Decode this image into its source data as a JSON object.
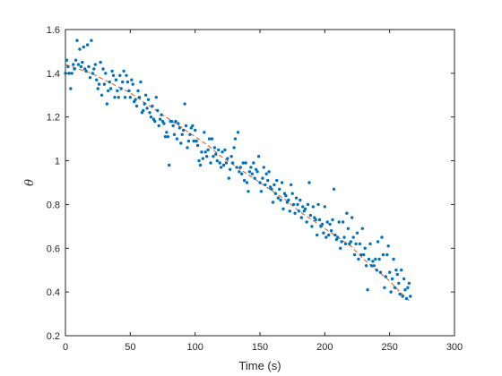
{
  "chart_data": {
    "type": "scatter",
    "xlabel": "Time (s)",
    "ylabel": "θ",
    "xlim": [
      0,
      300
    ],
    "ylim": [
      0.2,
      1.6
    ],
    "xticks": [
      "0",
      "50",
      "100",
      "150",
      "200",
      "250",
      "300"
    ],
    "yticks": [
      "0.2",
      "0.4",
      "0.6",
      "0.8",
      "1",
      "1.2",
      "1.4",
      "1.6"
    ],
    "grid": false,
    "box": true,
    "series": [
      {
        "kind": "scatter",
        "color": "#0072BD",
        "points": [
          [
            0,
            1.4
          ],
          [
            1,
            1.46
          ],
          [
            2,
            1.43
          ],
          [
            3,
            1.4
          ],
          [
            4,
            1.33
          ],
          [
            5,
            1.4
          ],
          [
            6,
            1.44
          ],
          [
            7,
            1.42
          ],
          [
            8,
            1.46
          ],
          [
            9,
            1.55
          ],
          [
            10,
            1.44
          ],
          [
            11,
            1.51
          ],
          [
            12,
            1.43
          ],
          [
            13,
            1.45
          ],
          [
            14,
            1.52
          ],
          [
            15,
            1.42
          ],
          [
            16,
            1.41
          ],
          [
            17,
            1.53
          ],
          [
            18,
            1.43
          ],
          [
            19,
            1.38
          ],
          [
            20,
            1.55
          ],
          [
            21,
            1.4
          ],
          [
            22,
            1.42
          ],
          [
            23,
            1.44
          ],
          [
            24,
            1.37
          ],
          [
            25,
            1.33
          ],
          [
            26,
            1.35
          ],
          [
            27,
            1.45
          ],
          [
            28,
            1.3
          ],
          [
            29,
            1.42
          ],
          [
            30,
            1.35
          ],
          [
            31,
            1.4
          ],
          [
            32,
            1.26
          ],
          [
            33,
            1.32
          ],
          [
            34,
            1.36
          ],
          [
            35,
            1.33
          ],
          [
            36,
            1.41
          ],
          [
            37,
            1.39
          ],
          [
            38,
            1.29
          ],
          [
            39,
            1.37
          ],
          [
            40,
            1.32
          ],
          [
            41,
            1.29
          ],
          [
            42,
            1.39
          ],
          [
            43,
            1.33
          ],
          [
            44,
            1.36
          ],
          [
            45,
            1.41
          ],
          [
            46,
            1.29
          ],
          [
            47,
            1.39
          ],
          [
            48,
            1.36
          ],
          [
            49,
            1.32
          ],
          [
            50,
            1.29
          ],
          [
            51,
            1.37
          ],
          [
            52,
            1.35
          ],
          [
            53,
            1.27
          ],
          [
            54,
            1.28
          ],
          [
            55,
            1.25
          ],
          [
            56,
            1.32
          ],
          [
            57,
            1.29
          ],
          [
            58,
            1.36
          ],
          [
            59,
            1.22
          ],
          [
            60,
            1.23
          ],
          [
            61,
            1.26
          ],
          [
            62,
            1.3
          ],
          [
            63,
            1.24
          ],
          [
            64,
            1.28
          ],
          [
            65,
            1.22
          ],
          [
            66,
            1.2
          ],
          [
            67,
            1.25
          ],
          [
            68,
            1.19
          ],
          [
            69,
            1.18
          ],
          [
            70,
            1.29
          ],
          [
            71,
            1.23
          ],
          [
            72,
            1.16
          ],
          [
            73,
            1.19
          ],
          [
            74,
            1.21
          ],
          [
            75,
            1.18
          ],
          [
            76,
            1.17
          ],
          [
            77,
            1.11
          ],
          [
            78,
            1.13
          ],
          [
            79,
            1.11
          ],
          [
            80,
            0.98
          ],
          [
            81,
            1.18
          ],
          [
            82,
            1.18
          ],
          [
            83,
            1.16
          ],
          [
            84,
            1.12
          ],
          [
            85,
            1.18
          ],
          [
            86,
            1.1
          ],
          [
            87,
            1.17
          ],
          [
            88,
            1.15
          ],
          [
            89,
            1.08
          ],
          [
            90,
            1.12
          ],
          [
            91,
            1.14
          ],
          [
            92,
            1.26
          ],
          [
            93,
            1.16
          ],
          [
            94,
            1.06
          ],
          [
            95,
            1.09
          ],
          [
            96,
            1.12
          ],
          [
            97,
            1.15
          ],
          [
            98,
            1.16
          ],
          [
            99,
            1.09
          ],
          [
            100,
            1.14
          ],
          [
            101,
            1.09
          ],
          [
            102,
            1.07
          ],
          [
            103,
            1.0
          ],
          [
            104,
            0.98
          ],
          [
            105,
            1.04
          ],
          [
            106,
            1.01
          ],
          [
            107,
            1.13
          ],
          [
            108,
            1.04
          ],
          [
            109,
            1.02
          ],
          [
            110,
            1.05
          ],
          [
            111,
            1.1
          ],
          [
            112,
            0.99
          ],
          [
            113,
            1.1
          ],
          [
            114,
            1.02
          ],
          [
            115,
            1.06
          ],
          [
            116,
            1.03
          ],
          [
            117,
            1.0
          ],
          [
            118,
            1.05
          ],
          [
            119,
            0.99
          ],
          [
            120,
            0.97
          ],
          [
            121,
            1.04
          ],
          [
            122,
            0.98
          ],
          [
            123,
            1.05
          ],
          [
            124,
            0.99
          ],
          [
            125,
            1.01
          ],
          [
            126,
            0.92
          ],
          [
            127,
            0.96
          ],
          [
            128,
            1.02
          ],
          [
            129,
            0.99
          ],
          [
            130,
            1.06
          ],
          [
            131,
            1.1
          ],
          [
            132,
            0.97
          ],
          [
            133,
            1.13
          ],
          [
            134,
            0.95
          ],
          [
            135,
            0.97
          ],
          [
            136,
            0.94
          ],
          [
            137,
            0.99
          ],
          [
            138,
            0.91
          ],
          [
            139,
            0.99
          ],
          [
            140,
            0.9
          ],
          [
            141,
            0.86
          ],
          [
            142,
            0.95
          ],
          [
            143,
            0.97
          ],
          [
            144,
            0.94
          ],
          [
            145,
            0.99
          ],
          [
            146,
            0.92
          ],
          [
            147,
            0.96
          ],
          [
            148,
            0.95
          ],
          [
            149,
            1.02
          ],
          [
            150,
            0.9
          ],
          [
            151,
            0.86
          ],
          [
            152,
            0.92
          ],
          [
            153,
            0.97
          ],
          [
            154,
            0.89
          ],
          [
            155,
            0.94
          ],
          [
            156,
            0.91
          ],
          [
            157,
            0.95
          ],
          [
            158,
            0.88
          ],
          [
            159,
            0.87
          ],
          [
            160,
            0.81
          ],
          [
            161,
            0.89
          ],
          [
            162,
            0.85
          ],
          [
            163,
            0.91
          ],
          [
            164,
            0.83
          ],
          [
            165,
            0.87
          ],
          [
            166,
            0.82
          ],
          [
            167,
            0.9
          ],
          [
            168,
            0.78
          ],
          [
            169,
            0.85
          ],
          [
            170,
            0.84
          ],
          [
            171,
            0.81
          ],
          [
            172,
            0.82
          ],
          [
            173,
            0.77
          ],
          [
            174,
            0.89
          ],
          [
            175,
            0.85
          ],
          [
            176,
            0.8
          ],
          [
            177,
            0.76
          ],
          [
            178,
            0.83
          ],
          [
            179,
            0.8
          ],
          [
            180,
            0.77
          ],
          [
            181,
            0.82
          ],
          [
            182,
            0.74
          ],
          [
            183,
            0.79
          ],
          [
            184,
            0.77
          ],
          [
            185,
            0.78
          ],
          [
            186,
            0.72
          ],
          [
            187,
            0.8
          ],
          [
            188,
            0.9
          ],
          [
            189,
            0.75
          ],
          [
            190,
            0.7
          ],
          [
            191,
            0.79
          ],
          [
            192,
            0.74
          ],
          [
            193,
            0.73
          ],
          [
            194,
            0.66
          ],
          [
            195,
            0.8
          ],
          [
            196,
            0.73
          ],
          [
            197,
            0.7
          ],
          [
            198,
            0.71
          ],
          [
            199,
            0.67
          ],
          [
            200,
            0.79
          ],
          [
            201,
            0.65
          ],
          [
            202,
            0.72
          ],
          [
            203,
            0.66
          ],
          [
            204,
            0.71
          ],
          [
            205,
            0.68
          ],
          [
            206,
            0.73
          ],
          [
            207,
            0.87
          ],
          [
            208,
            0.66
          ],
          [
            209,
            0.64
          ],
          [
            210,
            0.65
          ],
          [
            211,
            0.72
          ],
          [
            212,
            0.6
          ],
          [
            213,
            0.63
          ],
          [
            214,
            0.72
          ],
          [
            215,
            0.65
          ],
          [
            216,
            0.62
          ],
          [
            217,
            0.76
          ],
          [
            218,
            0.69
          ],
          [
            219,
            0.62
          ],
          [
            220,
            0.63
          ],
          [
            221,
            0.74
          ],
          [
            222,
            0.65
          ],
          [
            223,
            0.57
          ],
          [
            224,
            0.62
          ],
          [
            225,
            0.67
          ],
          [
            226,
            0.55
          ],
          [
            227,
            0.62
          ],
          [
            228,
            0.57
          ],
          [
            229,
            0.69
          ],
          [
            230,
            0.57
          ],
          [
            231,
            0.6
          ],
          [
            232,
            0.52
          ],
          [
            233,
            0.41
          ],
          [
            234,
            0.55
          ],
          [
            235,
            0.62
          ],
          [
            236,
            0.52
          ],
          [
            237,
            0.54
          ],
          [
            238,
            0.52
          ],
          [
            239,
            0.55
          ],
          [
            240,
            0.5
          ],
          [
            241,
            0.63
          ],
          [
            242,
            0.55
          ],
          [
            243,
            0.49
          ],
          [
            244,
            0.65
          ],
          [
            245,
            0.57
          ],
          [
            246,
            0.42
          ],
          [
            247,
            0.47
          ],
          [
            248,
            0.57
          ],
          [
            249,
            0.61
          ],
          [
            250,
            0.49
          ],
          [
            251,
            0.4
          ],
          [
            252,
            0.46
          ],
          [
            253,
            0.55
          ],
          [
            254,
            0.42
          ],
          [
            255,
            0.5
          ],
          [
            256,
            0.48
          ],
          [
            257,
            0.44
          ],
          [
            258,
            0.39
          ],
          [
            259,
            0.5
          ],
          [
            260,
            0.38
          ],
          [
            261,
            0.46
          ],
          [
            262,
            0.41
          ],
          [
            263,
            0.37
          ],
          [
            264,
            0.42
          ],
          [
            265,
            0.44
          ],
          [
            266,
            0.38
          ]
        ]
      },
      {
        "kind": "line",
        "style": "dashed",
        "color": "#D95319",
        "points": [
          [
            0,
            1.44
          ],
          [
            10,
            1.42
          ],
          [
            20,
            1.4
          ],
          [
            30,
            1.37
          ],
          [
            40,
            1.34
          ],
          [
            50,
            1.31
          ],
          [
            60,
            1.27
          ],
          [
            70,
            1.23
          ],
          [
            80,
            1.19
          ],
          [
            90,
            1.15
          ],
          [
            100,
            1.11
          ],
          [
            110,
            1.07
          ],
          [
            120,
            1.02
          ],
          [
            130,
            0.98
          ],
          [
            140,
            0.94
          ],
          [
            150,
            0.9
          ],
          [
            160,
            0.86
          ],
          [
            170,
            0.82
          ],
          [
            180,
            0.77
          ],
          [
            190,
            0.73
          ],
          [
            200,
            0.69
          ],
          [
            210,
            0.65
          ],
          [
            220,
            0.61
          ],
          [
            230,
            0.55
          ],
          [
            240,
            0.5
          ],
          [
            250,
            0.45
          ],
          [
            258,
            0.4
          ],
          [
            265,
            0.36
          ]
        ]
      }
    ]
  }
}
